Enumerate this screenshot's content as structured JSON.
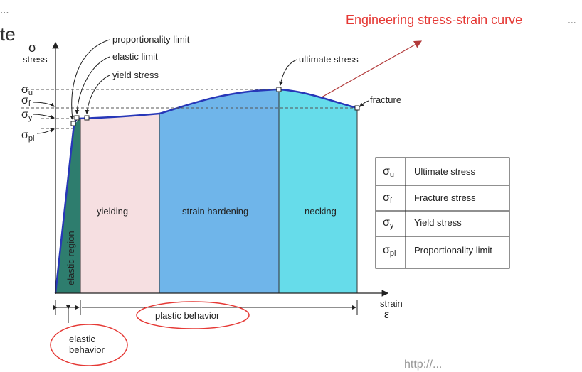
{
  "slide": {
    "left_fragment_1": "...",
    "left_fragment_2": "te",
    "title": "Engineering stress-strain curve",
    "title_ellipsis": "...",
    "footer_fragment": "http://...",
    "colors": {
      "title": "#e53935",
      "ellipse": "#e53935",
      "arrow": "#b23a3a"
    }
  },
  "diagram": {
    "y_axis": {
      "symbol": "σ",
      "label": "stress"
    },
    "x_axis": {
      "label": "strain",
      "symbol": "ε"
    },
    "y_ticks": {
      "u": {
        "base": "σ",
        "sub": "u"
      },
      "f": {
        "base": "σ",
        "sub": "f"
      },
      "y": {
        "base": "σ",
        "sub": "y"
      },
      "pl": {
        "base": "σ",
        "sub": "pl"
      }
    },
    "callouts": {
      "proportionality": "proportionality limit",
      "elastic_limit": "elastic limit",
      "yield_stress": "yield stress",
      "ultimate": "ultimate stress",
      "fracture": "fracture"
    },
    "regions": {
      "elastic": "elastic region",
      "yielding": "yielding",
      "strain_hardening": "strain hardening",
      "necking": "necking"
    },
    "region_colors": {
      "elastic": "#2e7d6e",
      "yielding": "#f6dfe1",
      "strain_hardening": "#6fb5ea",
      "necking": "#66dcea"
    },
    "bottom": {
      "elastic_behavior": "elastic\nbehavior",
      "plastic_behavior": "plastic behavior"
    },
    "legend": [
      {
        "base": "σ",
        "sub": "u",
        "desc": "Ultimate stress"
      },
      {
        "base": "σ",
        "sub": "f",
        "desc": "Fracture stress"
      },
      {
        "base": "σ",
        "sub": "y",
        "desc": "Yield stress"
      },
      {
        "base": "σ",
        "sub": "pl",
        "desc": "Proportionality limit"
      }
    ]
  }
}
